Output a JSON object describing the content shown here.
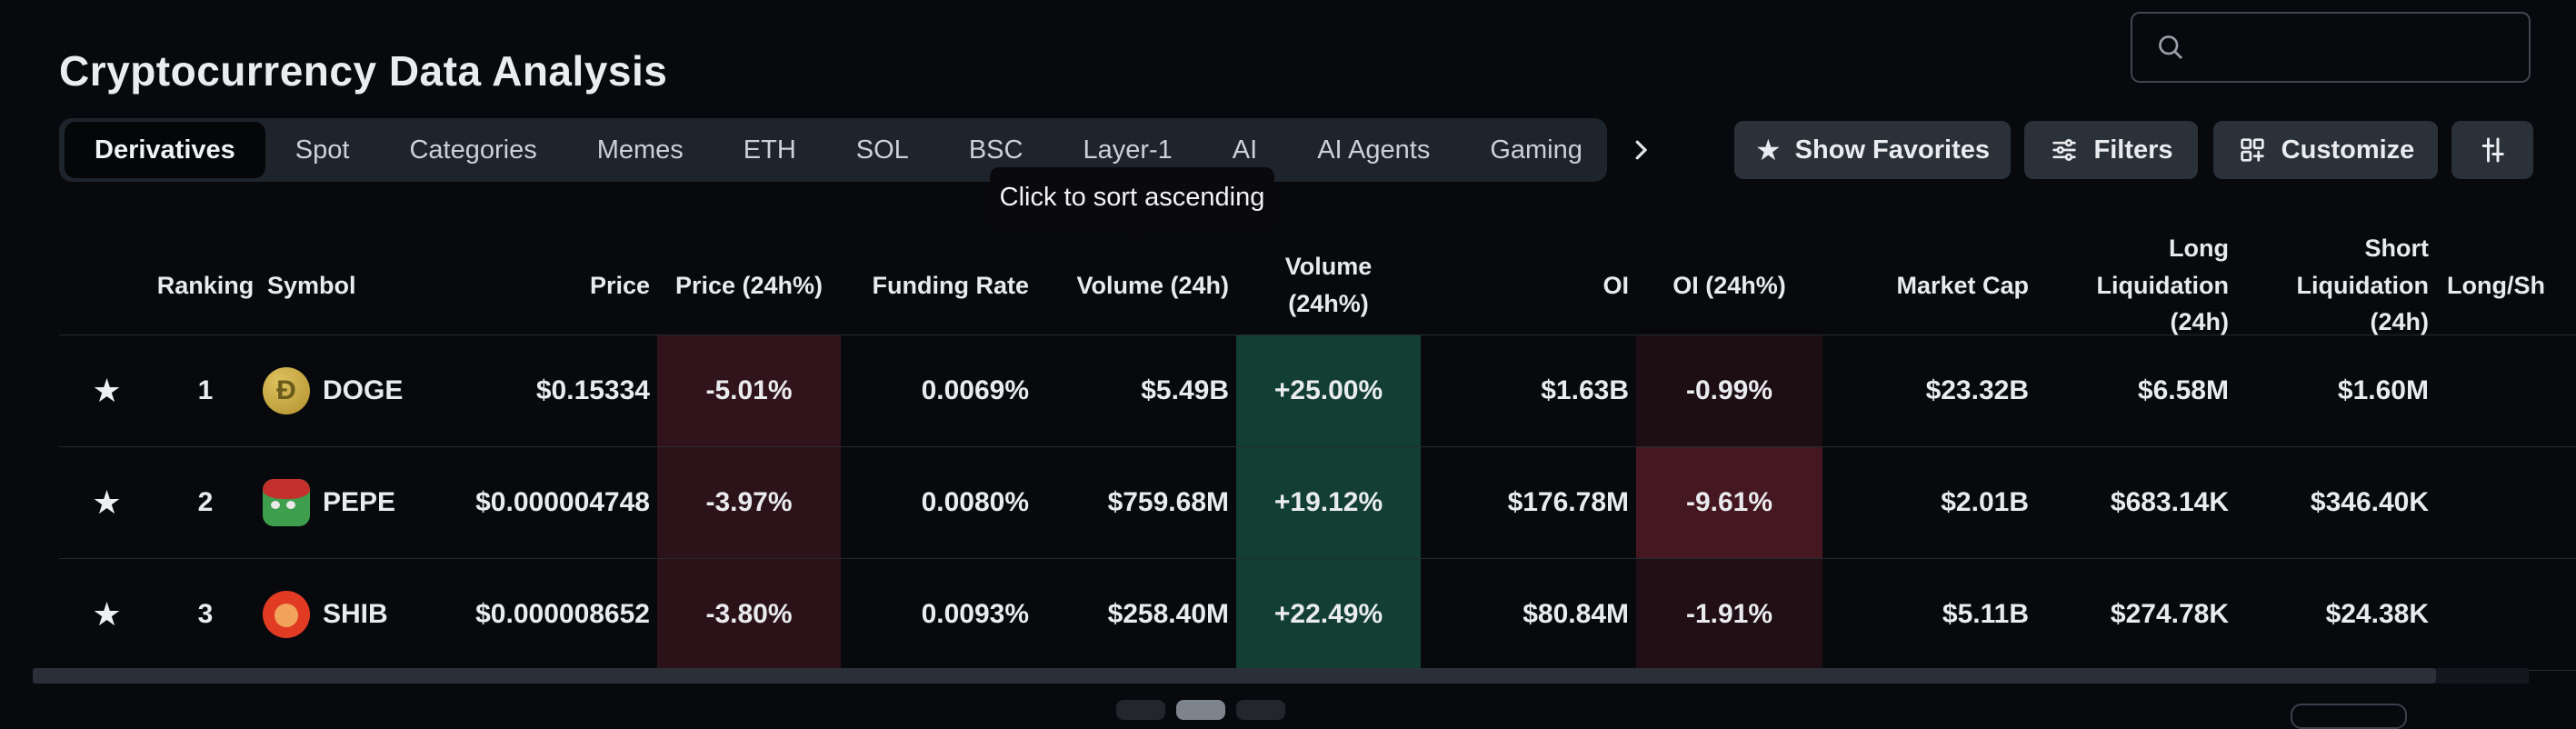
{
  "header": {
    "title": "Cryptocurrency Data Analysis",
    "search": {
      "placeholder": "",
      "value": "",
      "icon": "search-icon"
    }
  },
  "tabs": {
    "active": "Derivatives",
    "items": [
      "Derivatives",
      "Spot",
      "Categories",
      "Memes",
      "ETH",
      "SOL",
      "BSC",
      "Layer-1",
      "AI",
      "AI Agents",
      "Gaming"
    ],
    "more_icon": "chevron-right-icon"
  },
  "toolbar": {
    "show_favorites": {
      "label": "Show Favorites",
      "icon": "star-icon"
    },
    "filters": {
      "label": "Filters",
      "icon": "filter-sliders-icon"
    },
    "customize": {
      "label": "Customize",
      "icon": "customize-grid-icon"
    },
    "column_settings": {
      "icon": "adjust-columns-icon"
    }
  },
  "tooltip": {
    "text": "Click to sort ascending"
  },
  "table": {
    "columns": [
      "",
      "Ranking",
      "Symbol",
      "Price",
      "Price (24h%)",
      "Funding Rate",
      "Volume (24h)",
      "Volume (24h%)",
      "OI",
      "OI (24h%)",
      "Market Cap",
      "Long Liquidation (24h)",
      "Short Liquidation (24h)",
      "Long/Sh"
    ],
    "rows": [
      {
        "favorited": true,
        "rank": "1",
        "icon": "doge-coin-icon",
        "symbol": "DOGE",
        "price": "$0.15334",
        "price_change_24h": "-5.01%",
        "funding_rate": "0.0069%",
        "volume_24h": "$5.49B",
        "volume_change_24h": "+25.00%",
        "oi": "$1.63B",
        "oi_change_24h": "-0.99%",
        "market_cap": "$23.32B",
        "long_liquidation_24h": "$6.58M",
        "short_liquidation_24h": "$1.60M"
      },
      {
        "favorited": true,
        "rank": "2",
        "icon": "pepe-coin-icon",
        "symbol": "PEPE",
        "price": "$0.000004748",
        "price_change_24h": "-3.97%",
        "funding_rate": "0.0080%",
        "volume_24h": "$759.68M",
        "volume_change_24h": "+19.12%",
        "oi": "$176.78M",
        "oi_change_24h": "-9.61%",
        "market_cap": "$2.01B",
        "long_liquidation_24h": "$683.14K",
        "short_liquidation_24h": "$346.40K"
      },
      {
        "favorited": true,
        "rank": "3",
        "icon": "shib-coin-icon",
        "symbol": "SHIB",
        "price": "$0.000008652",
        "price_change_24h": "-3.80%",
        "funding_rate": "0.0093%",
        "volume_24h": "$258.40M",
        "volume_change_24h": "+22.49%",
        "oi": "$80.84M",
        "oi_change_24h": "-1.91%",
        "market_cap": "$5.11B",
        "long_liquidation_24h": "$274.78K",
        "short_liquidation_24h": "$24.38K"
      }
    ]
  },
  "colors": {
    "positive": "#2ebd85",
    "negative": "#f6465d",
    "button_bg": "#2b3139",
    "tabstrip_bg": "#1e242b"
  }
}
